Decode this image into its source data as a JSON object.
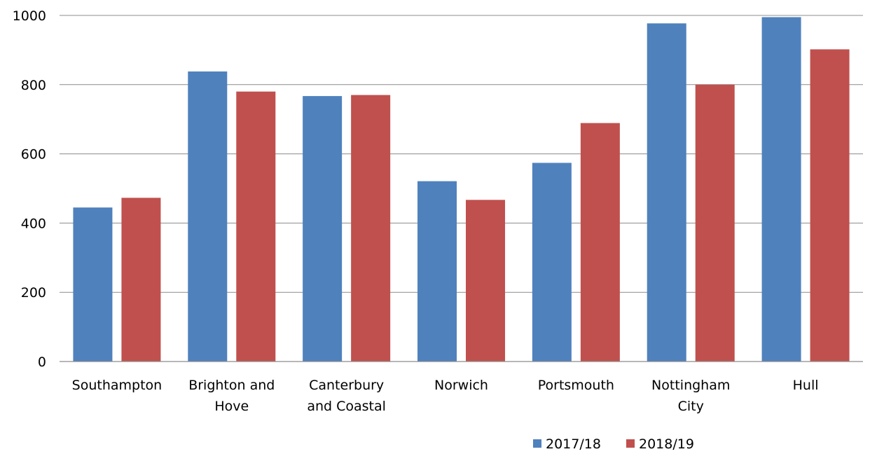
{
  "chart_data": {
    "type": "bar",
    "title": "",
    "xlabel": "",
    "ylabel": "",
    "categories": [
      [
        "Southampton"
      ],
      [
        "Brighton and",
        "Hove"
      ],
      [
        "Canterbury",
        "and Coastal"
      ],
      [
        "Norwich"
      ],
      [
        "Portsmouth"
      ],
      [
        "Nottingham",
        "City"
      ],
      [
        "Hull"
      ]
    ],
    "series": [
      {
        "name": "2017/18",
        "color": "#4f81bd",
        "values": [
          445,
          838,
          767,
          521,
          574,
          977,
          995
        ]
      },
      {
        "name": "2018/19",
        "color": "#c0504d",
        "values": [
          473,
          780,
          770,
          467,
          689,
          800,
          902
        ]
      }
    ],
    "ylim": [
      0,
      1000
    ],
    "yticks": [
      0,
      200,
      400,
      600,
      800,
      1000
    ],
    "grid": true,
    "legend_position": "bottom-right"
  }
}
